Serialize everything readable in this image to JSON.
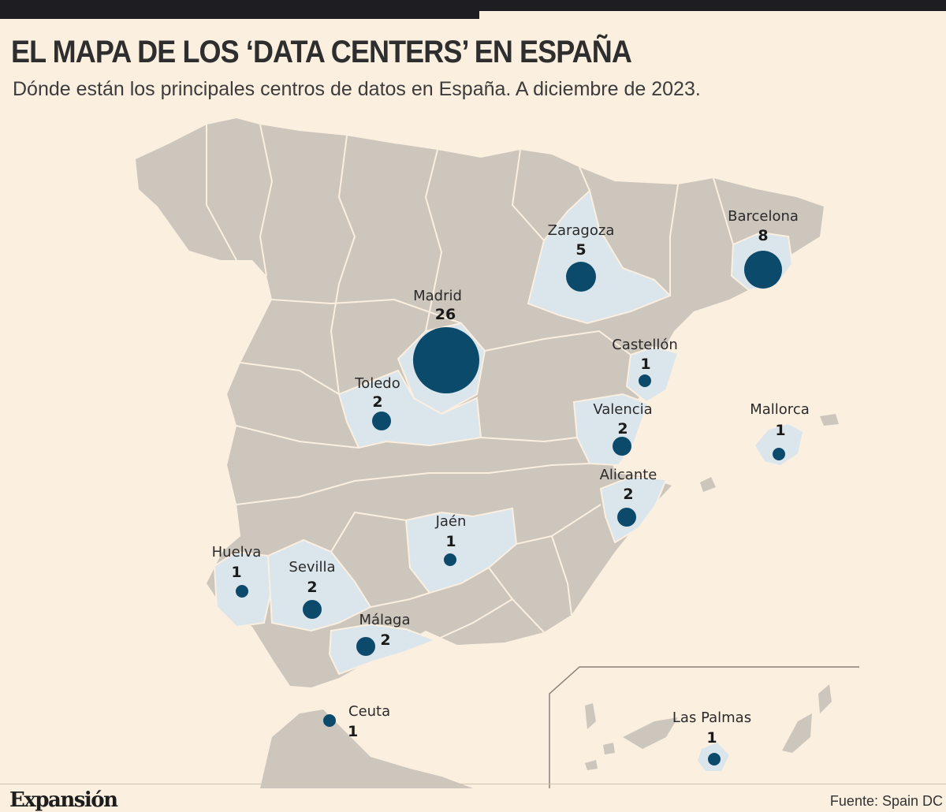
{
  "header": {
    "title": "EL MAPA DE LOS ‘DATA CENTERS’ EN ESPAÑA",
    "subtitle": "Dónde están los principales centros de datos en España. A diciembre de 2023."
  },
  "colors": {
    "background": "#fbefe0",
    "land": "#cdc6bd",
    "highlighted_province": "#dbe5ec",
    "bubble": "#0b4a6b",
    "border": "#fbefe0"
  },
  "chart_data": {
    "type": "bubble-map",
    "legend": "none",
    "points": [
      {
        "name": "Madrid",
        "value": 26
      },
      {
        "name": "Barcelona",
        "value": 8
      },
      {
        "name": "Zaragoza",
        "value": 5
      },
      {
        "name": "Castellón",
        "value": 1
      },
      {
        "name": "Toledo",
        "value": 2
      },
      {
        "name": "Valencia",
        "value": 2
      },
      {
        "name": "Mallorca",
        "value": 1
      },
      {
        "name": "Alicante",
        "value": 2
      },
      {
        "name": "Jaén",
        "value": 1
      },
      {
        "name": "Huelva",
        "value": 1
      },
      {
        "name": "Sevilla",
        "value": 2
      },
      {
        "name": "Málaga",
        "value": 2
      },
      {
        "name": "Ceuta",
        "value": 1
      },
      {
        "name": "Las Palmas",
        "value": 1
      }
    ]
  },
  "footer": {
    "logo": "Expansión",
    "source": "Fuente: Spain DC"
  }
}
